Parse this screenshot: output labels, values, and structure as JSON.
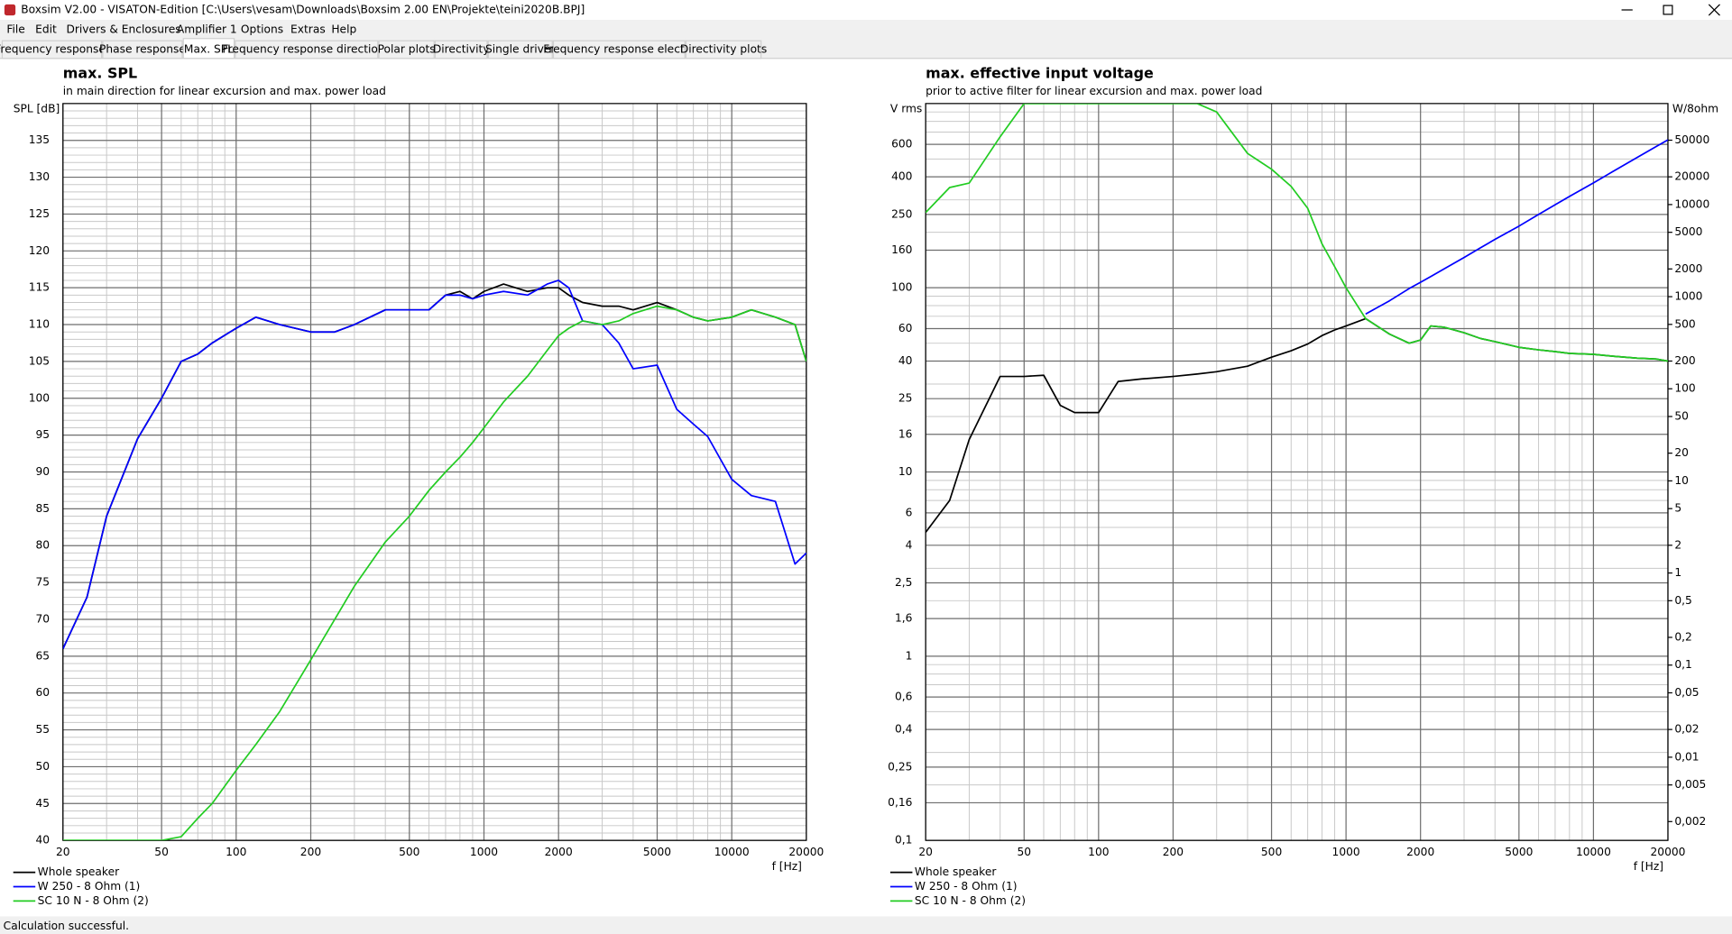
{
  "window": {
    "title": "Boxsim V2.00 - VISATON-Edition [C:\\Users\\vesam\\Downloads\\Boxsim 2.00 EN\\Projekte\\teini2020B.BPJ]",
    "menu": [
      "File",
      "Edit",
      "Drivers & Enclosures",
      "Amplifier 1",
      "Options",
      "Extras",
      "Help"
    ],
    "tabs": [
      "Frequency response.",
      "Phase response",
      "Max. SPL",
      "Frequency response directions",
      "Polar plots",
      "Directivity",
      "Single driver",
      "Frequency response electr..",
      "Directivity plots"
    ],
    "active_tab": 2,
    "status": "Calculation successful."
  },
  "chart_data": [
    {
      "type": "line",
      "title": "max. SPL",
      "subtitle": "in main direction for linear excursion and max. power load",
      "ylabel": "SPL [dB]",
      "xlabel": "f [Hz]",
      "xlog": true,
      "ylog": false,
      "grid": true,
      "legend": "bottom-left",
      "xlim": [
        20,
        20000
      ],
      "ylim": [
        40,
        140
      ],
      "xticks": [
        20,
        50,
        100,
        200,
        500,
        1000,
        2000,
        5000,
        10000,
        20000
      ],
      "xminorticks": [
        30,
        40,
        60,
        70,
        80,
        90,
        300,
        400,
        600,
        700,
        800,
        900,
        3000,
        4000,
        6000,
        7000,
        8000,
        9000
      ],
      "yticks": [
        40,
        45,
        50,
        55,
        60,
        65,
        70,
        75,
        80,
        85,
        90,
        95,
        100,
        105,
        110,
        115,
        120,
        125,
        130,
        135
      ],
      "yminorticks": [
        41,
        42,
        43,
        44,
        46,
        47,
        48,
        49,
        51,
        52,
        53,
        54,
        56,
        57,
        58,
        59,
        61,
        62,
        63,
        64,
        66,
        67,
        68,
        69,
        71,
        72,
        73,
        74,
        76,
        77,
        78,
        79,
        81,
        82,
        83,
        84,
        86,
        87,
        88,
        89,
        91,
        92,
        93,
        94,
        96,
        97,
        98,
        99,
        101,
        102,
        103,
        104,
        106,
        107,
        108,
        109,
        111,
        112,
        113,
        114,
        116,
        117,
        118,
        119,
        121,
        122,
        123,
        124,
        126,
        127,
        128,
        129,
        131,
        132,
        133,
        134,
        136,
        137,
        138,
        139
      ],
      "x": [
        20,
        25,
        30,
        40,
        50,
        60,
        70,
        80,
        100,
        120,
        150,
        200,
        250,
        300,
        400,
        500,
        600,
        700,
        800,
        900,
        1000,
        1200,
        1500,
        1800,
        2000,
        2200,
        2500,
        3000,
        3500,
        4000,
        5000,
        6000,
        7000,
        8000,
        10000,
        12000,
        15000,
        18000,
        20000
      ],
      "series": [
        {
          "name": "Whole speaker",
          "color": "#000000",
          "values": [
            66,
            73,
            84,
            94.5,
            100,
            105,
            106,
            107.5,
            109.5,
            111,
            110,
            109,
            109,
            110,
            112,
            112,
            112,
            114,
            114.5,
            113.5,
            114.5,
            115.5,
            114.5,
            115,
            115,
            114,
            113,
            112.5,
            112.5,
            112,
            113,
            112,
            111,
            110.5,
            111,
            112,
            111,
            110,
            105
          ]
        },
        {
          "name": "W 250 - 8 Ohm (1)",
          "color": "#0000ff",
          "values": [
            66,
            73,
            84,
            94.5,
            100,
            105,
            106,
            107.5,
            109.5,
            111,
            110,
            109,
            109,
            110,
            112,
            112,
            112,
            114,
            114,
            113.5,
            114,
            114.5,
            114,
            115.5,
            116,
            115,
            110.5,
            110,
            107.5,
            104,
            104.5,
            98.5,
            96.5,
            94.8,
            89,
            86.8,
            86,
            77.5,
            79
          ]
        },
        {
          "name": "SC 10 N - 8 Ohm (2)",
          "color": "#22cc22",
          "values": [
            40,
            40,
            40,
            40,
            40,
            40.5,
            43,
            45,
            49.5,
            53,
            57.5,
            64.5,
            70,
            74.5,
            80.5,
            84,
            87.5,
            90,
            92,
            94,
            96,
            99.5,
            103,
            106.5,
            108.5,
            109.5,
            110.5,
            110,
            110.5,
            111.5,
            112.5,
            112,
            111,
            110.5,
            111,
            112,
            111,
            110,
            105
          ]
        }
      ]
    },
    {
      "type": "line",
      "title": "max. effective input voltage",
      "subtitle": "prior to active filter for linear excursion and max. power load",
      "ylabel": "V rms",
      "y2label": "W/8ohm",
      "xlabel": "f [Hz]",
      "xlog": true,
      "ylog": true,
      "y2log": true,
      "grid": true,
      "legend": "bottom-left",
      "xlim": [
        20,
        20000
      ],
      "ylim": [
        0.1,
        1000
      ],
      "y2lim": [
        0.00125,
        125000
      ],
      "xticks": [
        20,
        50,
        100,
        200,
        500,
        1000,
        2000,
        5000,
        10000,
        20000
      ],
      "xminorticks": [
        30,
        40,
        60,
        70,
        80,
        90,
        300,
        400,
        600,
        700,
        800,
        900,
        3000,
        4000,
        6000,
        7000,
        8000,
        9000
      ],
      "yticks": [
        {
          "value": 0.1,
          "label": "0,1"
        },
        {
          "value": 0.16,
          "label": "0,16"
        },
        {
          "value": 0.25,
          "label": "0,25"
        },
        {
          "value": 0.4,
          "label": "0,4"
        },
        {
          "value": 0.6,
          "label": "0,6"
        },
        1,
        {
          "value": 1.6,
          "label": "1,6"
        },
        {
          "value": 2.5,
          "label": "2,5"
        },
        4,
        6,
        10,
        16,
        25,
        40,
        60,
        100,
        160,
        250,
        400,
        600
      ],
      "yminorticks": [
        0.2,
        0.3,
        0.5,
        0.7,
        0.8,
        0.9,
        2,
        3,
        5,
        7,
        8,
        9,
        20,
        30,
        50,
        70,
        80,
        90,
        200,
        300,
        500,
        700,
        800,
        900
      ],
      "y2ticks": [
        50000,
        20000,
        10000,
        5000,
        2000,
        1000,
        500,
        200,
        100,
        50,
        20,
        10,
        5,
        2,
        1,
        {
          "value": 0.5,
          "label": "0,5"
        },
        {
          "value": 0.2,
          "label": "0,2"
        },
        {
          "value": 0.1,
          "label": "0,1"
        },
        {
          "value": 0.05,
          "label": "0,05"
        },
        {
          "value": 0.02,
          "label": "0,02"
        },
        {
          "value": 0.01,
          "label": "0,01"
        },
        {
          "value": 0.005,
          "label": "0,005"
        },
        {
          "value": 0.002,
          "label": "0,002"
        }
      ],
      "x": [
        20,
        25,
        30,
        40,
        50,
        60,
        70,
        80,
        100,
        120,
        150,
        200,
        250,
        300,
        400,
        500,
        600,
        700,
        800,
        900,
        1000,
        1200,
        1500,
        1800,
        2000,
        2200,
        2500,
        3000,
        3500,
        4000,
        5000,
        6000,
        7000,
        8000,
        10000,
        12000,
        15000,
        18000,
        20000
      ],
      "series": [
        {
          "name": "Whole speaker",
          "color": "#000000",
          "values": [
            4.7,
            7,
            15,
            33,
            33,
            33.5,
            23,
            21,
            21,
            31,
            32,
            33,
            34,
            35,
            37.5,
            42,
            45.5,
            49.5,
            55,
            59,
            62,
            68,
            56,
            50,
            52,
            62,
            61,
            57,
            53,
            51,
            47.5,
            46,
            45,
            44,
            43.5,
            42.5,
            41.5,
            41,
            40
          ]
        },
        {
          "name": "W 250 - 8 Ohm (1)",
          "color": "#0000ff",
          "values": [
            null,
            null,
            null,
            null,
            null,
            null,
            null,
            null,
            null,
            null,
            null,
            null,
            null,
            null,
            null,
            null,
            null,
            null,
            null,
            null,
            null,
            72,
            85,
            99,
            107,
            115,
            127,
            146,
            165,
            183,
            216,
            250,
            282,
            313,
            371,
            428,
            509,
            586,
            635
          ]
        },
        {
          "name": "SC 10 N - 8 Ohm (2)",
          "color": "#22cc22",
          "values": [
            256,
            350,
            370,
            660,
            1000,
            1000,
            1000,
            1000,
            1000,
            1000,
            1000,
            1000,
            1000,
            900,
            536,
            440,
            355,
            270,
            173,
            130,
            100,
            68,
            56,
            50,
            52,
            62,
            61,
            57,
            53,
            51,
            47.5,
            46,
            45,
            44,
            43.5,
            42.5,
            41.5,
            41,
            40
          ]
        }
      ]
    }
  ]
}
